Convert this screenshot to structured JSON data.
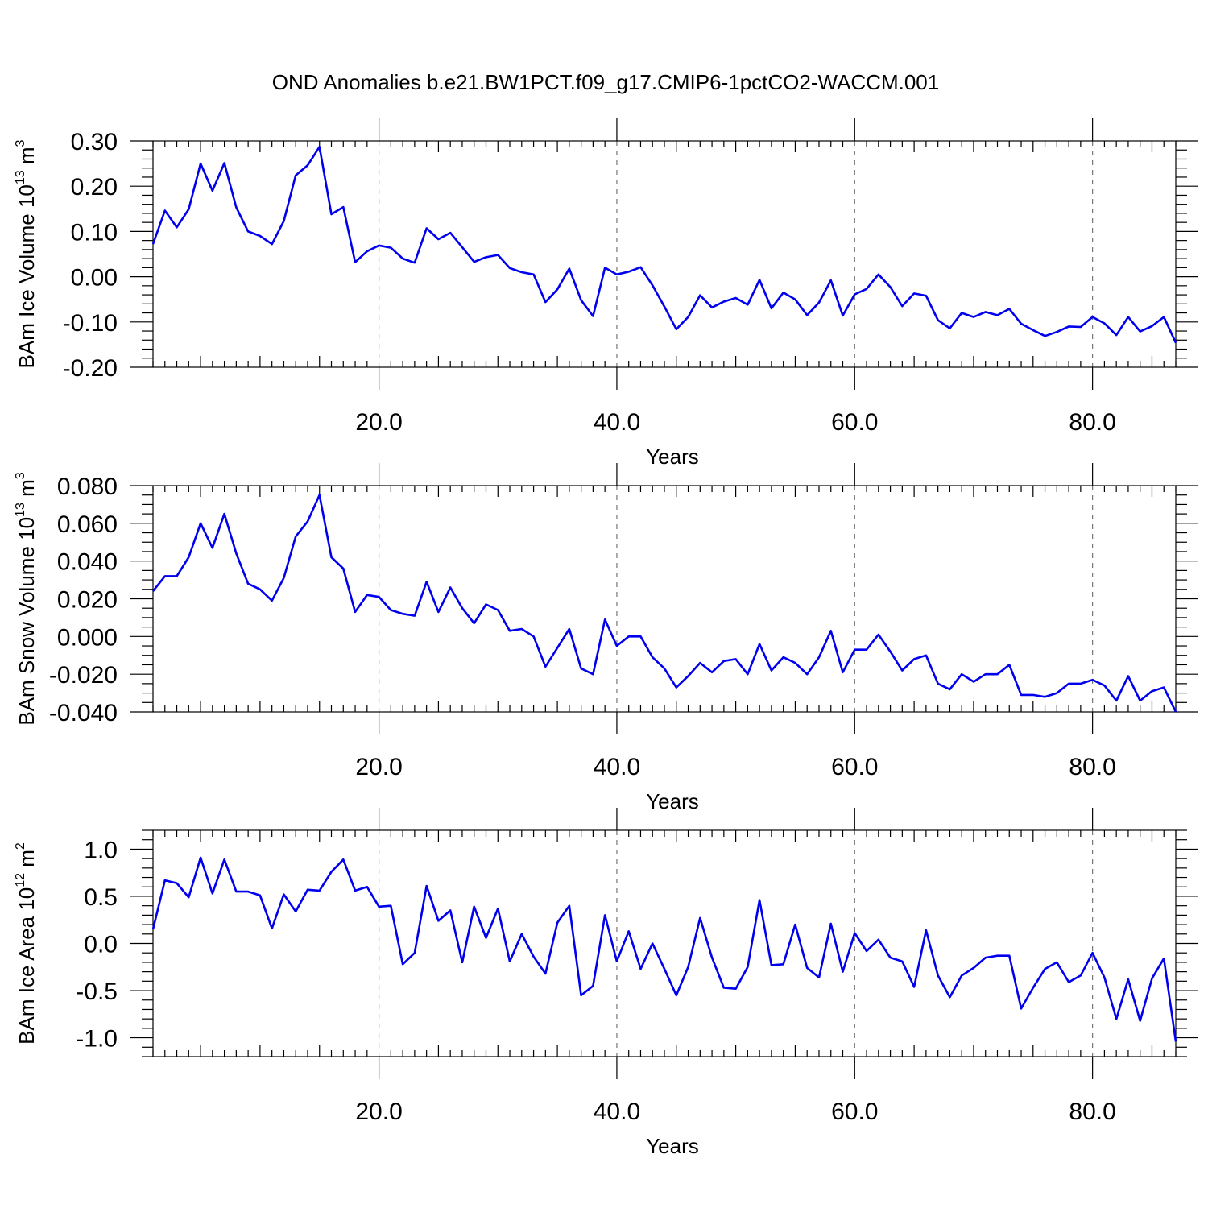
{
  "title": "OND Anomalies b.e21.BW1PCT.f09_g17.CMIP6-1pctCO2-WACCM.001",
  "line_color": "#0000ee",
  "chart_data": [
    {
      "type": "line",
      "ylabel_main": "BAm Ice Volume 10",
      "ylabel_exp": "13",
      "ylabel_unit": " m",
      "ylabel_unit_exp": "3",
      "xlabel": "Years",
      "xlim": [
        1,
        87
      ],
      "ylim": [
        -0.2,
        0.3
      ],
      "xticks": [
        20,
        40,
        60,
        80
      ],
      "xtick_labels": [
        "20.0",
        "40.0",
        "60.0",
        "80.0"
      ],
      "yticks": [
        -0.2,
        -0.1,
        0.0,
        0.1,
        0.2,
        0.3
      ],
      "ytick_labels": [
        "-0.20",
        "-0.10",
        "0.00",
        "0.10",
        "0.20",
        "0.30"
      ],
      "yminor_step": 0.02,
      "grid": true,
      "series": [
        {
          "values": [
            0.072,
            0.146,
            0.109,
            0.149,
            0.25,
            0.19,
            0.251,
            0.153,
            0.1,
            0.09,
            0.072,
            0.123,
            0.224,
            0.246,
            0.287,
            0.138,
            0.154,
            0.032,
            0.056,
            0.069,
            0.064,
            0.04,
            0.031,
            0.107,
            0.083,
            0.097,
            0.065,
            0.033,
            0.043,
            0.048,
            0.019,
            0.01,
            0.005,
            -0.056,
            -0.028,
            0.018,
            -0.052,
            -0.087,
            0.02,
            0.005,
            0.011,
            0.021,
            -0.019,
            -0.066,
            -0.116,
            -0.089,
            -0.041,
            -0.068,
            -0.055,
            -0.047,
            -0.062,
            -0.007,
            -0.07,
            -0.035,
            -0.05,
            -0.085,
            -0.057,
            -0.008,
            -0.086,
            -0.039,
            -0.027,
            0.005,
            -0.023,
            -0.065,
            -0.037,
            -0.042,
            -0.096,
            -0.114,
            -0.08,
            -0.089,
            -0.078,
            -0.085,
            -0.071,
            -0.104,
            -0.118,
            -0.131,
            -0.122,
            -0.11,
            -0.111,
            -0.089,
            -0.103,
            -0.129,
            -0.089,
            -0.121,
            -0.109,
            -0.089,
            -0.146
          ]
        }
      ]
    },
    {
      "type": "line",
      "ylabel_main": "BAm Snow Volume 10",
      "ylabel_exp": "13",
      "ylabel_unit": " m",
      "ylabel_unit_exp": "3",
      "xlabel": "Years",
      "xlim": [
        1,
        87
      ],
      "ylim": [
        -0.04,
        0.08
      ],
      "xticks": [
        20,
        40,
        60,
        80
      ],
      "xtick_labels": [
        "20.0",
        "40.0",
        "60.0",
        "80.0"
      ],
      "yticks": [
        -0.04,
        -0.02,
        0.0,
        0.02,
        0.04,
        0.06,
        0.08
      ],
      "ytick_labels": [
        "-0.040",
        "-0.020",
        "0.000",
        "0.020",
        "0.040",
        "0.060",
        "0.080"
      ],
      "yminor_step": 0.005,
      "grid": true,
      "series": [
        {
          "values": [
            0.024,
            0.032,
            0.032,
            0.042,
            0.06,
            0.047,
            0.065,
            0.044,
            0.028,
            0.025,
            0.019,
            0.031,
            0.053,
            0.061,
            0.075,
            0.042,
            0.036,
            0.013,
            0.022,
            0.021,
            0.014,
            0.012,
            0.011,
            0.029,
            0.013,
            0.026,
            0.015,
            0.007,
            0.017,
            0.014,
            0.003,
            0.004,
            0.0,
            -0.016,
            -0.006,
            0.004,
            -0.017,
            -0.02,
            0.009,
            -0.005,
            0.0,
            0.0,
            -0.011,
            -0.017,
            -0.027,
            -0.021,
            -0.014,
            -0.019,
            -0.013,
            -0.012,
            -0.02,
            -0.004,
            -0.018,
            -0.011,
            -0.014,
            -0.02,
            -0.011,
            0.003,
            -0.019,
            -0.007,
            -0.007,
            0.001,
            -0.008,
            -0.018,
            -0.012,
            -0.01,
            -0.025,
            -0.028,
            -0.02,
            -0.024,
            -0.02,
            -0.02,
            -0.015,
            -0.031,
            -0.031,
            -0.032,
            -0.03,
            -0.025,
            -0.025,
            -0.023,
            -0.026,
            -0.034,
            -0.021,
            -0.034,
            -0.029,
            -0.027,
            -0.04
          ]
        }
      ]
    },
    {
      "type": "line",
      "ylabel_main": "BAm Ice Area 10",
      "ylabel_exp": "12",
      "ylabel_unit": " m",
      "ylabel_unit_exp": "2",
      "xlabel": "Years",
      "xlim": [
        1,
        87
      ],
      "ylim": [
        -1.2,
        1.2
      ],
      "xticks": [
        20,
        40,
        60,
        80
      ],
      "xtick_labels": [
        "20.0",
        "40.0",
        "60.0",
        "80.0"
      ],
      "yticks": [
        -1.0,
        -0.5,
        0.0,
        0.5,
        1.0
      ],
      "ytick_labels": [
        "-1.0",
        "-0.5",
        "0.0",
        "0.5",
        "1.0"
      ],
      "yminor_step": 0.1,
      "grid": true,
      "series": [
        {
          "values": [
            0.15,
            0.67,
            0.64,
            0.49,
            0.91,
            0.53,
            0.89,
            0.55,
            0.55,
            0.51,
            0.16,
            0.52,
            0.34,
            0.57,
            0.56,
            0.76,
            0.89,
            0.56,
            0.6,
            0.39,
            0.4,
            -0.22,
            -0.1,
            0.61,
            0.24,
            0.35,
            -0.2,
            0.39,
            0.06,
            0.37,
            -0.19,
            0.1,
            -0.14,
            -0.32,
            0.22,
            0.4,
            -0.55,
            -0.45,
            0.3,
            -0.19,
            0.13,
            -0.27,
            0.0,
            -0.27,
            -0.55,
            -0.25,
            0.27,
            -0.15,
            -0.47,
            -0.48,
            -0.25,
            0.46,
            -0.23,
            -0.22,
            0.2,
            -0.26,
            -0.36,
            0.21,
            -0.3,
            0.11,
            -0.08,
            0.04,
            -0.15,
            -0.19,
            -0.46,
            0.14,
            -0.34,
            -0.57,
            -0.34,
            -0.26,
            -0.15,
            -0.13,
            -0.13,
            -0.69,
            -0.47,
            -0.27,
            -0.2,
            -0.41,
            -0.34,
            -0.1,
            -0.36,
            -0.8,
            -0.38,
            -0.82,
            -0.37,
            -0.16,
            -1.04
          ]
        }
      ]
    }
  ]
}
